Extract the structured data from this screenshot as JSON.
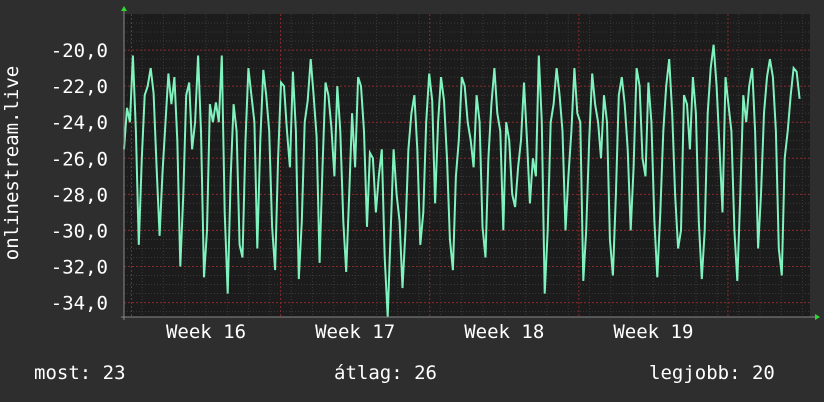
{
  "colors": {
    "background": "#2e2e2e",
    "plot_background": "#1c1c1c",
    "line": "#7ff2bd",
    "grid_major": "#8b2a2a",
    "grid_minor": "#3a3a3a",
    "axis_arrow": "#2fd82f",
    "text": "#ffffff"
  },
  "chart_data": {
    "type": "line",
    "ylabel": "onlinestream.live",
    "ylim": [
      -34.8,
      -18.0
    ],
    "yticks": [
      -20,
      -22,
      -24,
      -26,
      -28,
      -30,
      -32,
      -34
    ],
    "ytick_labels": [
      "-20,0",
      "-22,0",
      "-24,0",
      "-26,0",
      "-28,0",
      "-30,0",
      "-32,0",
      "-34,0"
    ],
    "x_range_weeks": [
      15.45,
      20.05
    ],
    "xticks": [
      {
        "pos": 16.0,
        "label": "Week 16"
      },
      {
        "pos": 17.0,
        "label": "Week 17"
      },
      {
        "pos": 18.0,
        "label": "Week 18"
      },
      {
        "pos": 19.0,
        "label": "Week 19"
      }
    ],
    "series": [
      {
        "x_start_week": 15.45,
        "x_end_week": 19.98,
        "values": [
          -25.5,
          -23.2,
          -24.0,
          -20.3,
          -24.5,
          -30.8,
          -26.0,
          -22.5,
          -22.0,
          -21.0,
          -22.4,
          -26.5,
          -30.3,
          -26.8,
          -24.0,
          -21.3,
          -23.0,
          -21.5,
          -25.0,
          -32.0,
          -28.0,
          -22.5,
          -21.8,
          -25.5,
          -24.0,
          -20.3,
          -24.5,
          -32.6,
          -30.0,
          -23.0,
          -24.0,
          -22.9,
          -24.0,
          -20.3,
          -29.0,
          -33.5,
          -27.0,
          -23.0,
          -24.5,
          -30.8,
          -31.5,
          -25.0,
          -21.0,
          -22.5,
          -24.0,
          -31.0,
          -25.0,
          -21.1,
          -22.5,
          -24.5,
          -29.8,
          -32.2,
          -26.0,
          -21.8,
          -22.0,
          -24.5,
          -26.5,
          -21.2,
          -24.5,
          -32.7,
          -29.5,
          -24.0,
          -22.8,
          -20.5,
          -22.5,
          -24.8,
          -31.8,
          -26.5,
          -21.8,
          -22.5,
          -24.3,
          -27.0,
          -22.0,
          -24.5,
          -29.5,
          -32.3,
          -28.0,
          -23.5,
          -26.5,
          -21.5,
          -22.0,
          -24.5,
          -29.8,
          -25.7,
          -26.0,
          -29.0,
          -27.0,
          -25.5,
          -31.5,
          -34.8,
          -30.0,
          -25.5,
          -28.0,
          -29.5,
          -33.2,
          -30.0,
          -25.5,
          -23.5,
          -22.5,
          -25.5,
          -30.8,
          -29.0,
          -24.0,
          -21.3,
          -22.8,
          -28.5,
          -24.0,
          -21.5,
          -22.8,
          -26.0,
          -30.5,
          -32.2,
          -27.0,
          -25.0,
          -21.5,
          -22.0,
          -24.0,
          -25.0,
          -26.5,
          -22.5,
          -24.0,
          -29.8,
          -31.5,
          -26.0,
          -23.0,
          -21.0,
          -23.5,
          -24.5,
          -30.0,
          -24.0,
          -25.0,
          -28.0,
          -28.7,
          -26.5,
          -25.0,
          -21.8,
          -25.0,
          -28.5,
          -26.0,
          -27.0,
          -20.3,
          -24.0,
          -33.5,
          -30.0,
          -24.0,
          -23.0,
          -21.0,
          -22.5,
          -24.5,
          -30.0,
          -27.0,
          -24.5,
          -21.0,
          -23.5,
          -24.0,
          -32.8,
          -30.0,
          -25.0,
          -21.3,
          -23.0,
          -24.0,
          -26.0,
          -22.5,
          -24.0,
          -30.5,
          -32.5,
          -28.0,
          -22.5,
          -21.5,
          -23.0,
          -25.5,
          -30.0,
          -26.5,
          -21.0,
          -22.0,
          -26.0,
          -27.0,
          -21.8,
          -24.0,
          -29.5,
          -32.6,
          -29.0,
          -24.5,
          -22.0,
          -20.5,
          -23.5,
          -28.0,
          -31.0,
          -30.0,
          -22.5,
          -23.0,
          -25.5,
          -21.5,
          -23.5,
          -29.5,
          -32.7,
          -30.0,
          -23.5,
          -21.0,
          -19.7,
          -22.0,
          -25.5,
          -29.0,
          -21.5,
          -23.0,
          -24.5,
          -30.0,
          -32.8,
          -28.0,
          -22.5,
          -24.0,
          -22.0,
          -21.0,
          -24.5,
          -31.0,
          -28.0,
          -23.5,
          -21.5,
          -20.5,
          -21.5,
          -24.5,
          -31.0,
          -32.5,
          -26.0,
          -24.5,
          -22.5,
          -21.0,
          -21.2,
          -22.7
        ]
      }
    ]
  },
  "stats": {
    "current": "most: 23",
    "average": "átlag: 26",
    "max": "legjobb: 20"
  }
}
